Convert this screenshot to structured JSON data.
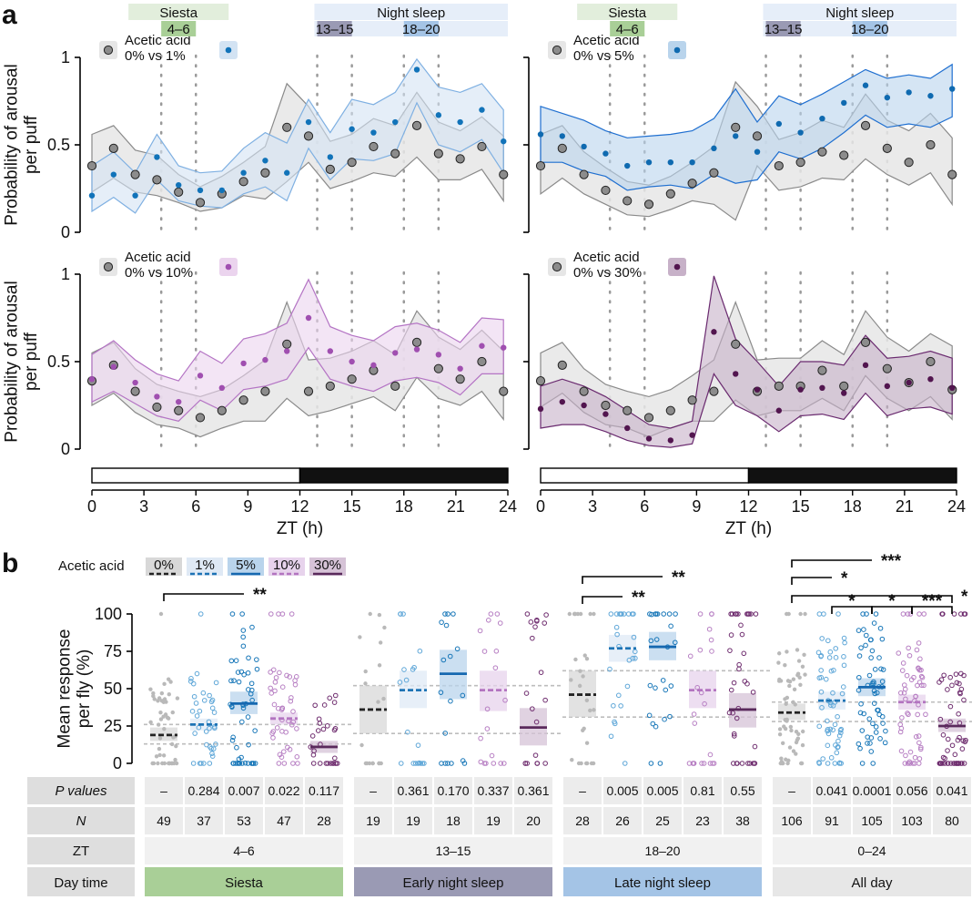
{
  "figure": {
    "panel_a": "a",
    "panel_b": "b",
    "colors": {
      "control": "#7a7a7a",
      "control_fill": "#e6e6e6",
      "ac1": "#1f78b4",
      "ac1_fill": "#d3e3f3",
      "ac5": "#1f6fb8",
      "ac5_fill": "#b9d4ec",
      "ac10": "#a760b0",
      "ac10_fill": "#ebd4ee",
      "ac30": "#5e1f5c",
      "ac30_fill": "#c7b1c8",
      "siesta": "#a9cf97",
      "early_night": "#9a9ab4",
      "late_night": "#a4c4e6",
      "all_day": "#e7e7e7"
    }
  },
  "chart_data": [
    {
      "id": "a-top-left",
      "type": "scatter",
      "title": "",
      "xlabel": "",
      "ylabel": "Probability of arousal per puff",
      "xlim": [
        0,
        24
      ],
      "ylim": [
        0,
        1
      ],
      "yticks": [
        "0",
        "0.5",
        "1"
      ],
      "header": {
        "siesta": "Siesta",
        "siesta_range": "4–6",
        "night": "Night sleep",
        "early_range": "13–15",
        "late_range": "18–20"
      },
      "legend": {
        "title": "Acetic acid",
        "entry": "0% vs 1%"
      },
      "x": [
        0,
        1.25,
        2.5,
        3.75,
        5,
        6.25,
        7.5,
        8.75,
        10,
        11.25,
        12.5,
        13.75,
        15,
        16.25,
        17.5,
        18.75,
        20,
        21.25,
        22.5,
        23.75
      ],
      "series": [
        {
          "name": "0%",
          "values": [
            0.38,
            0.48,
            0.33,
            0.3,
            0.23,
            0.17,
            0.22,
            0.29,
            0.34,
            0.6,
            0.55,
            0.36,
            0.4,
            0.49,
            0.45,
            0.61,
            0.45,
            0.42,
            0.49,
            0.33
          ],
          "lower": [
            0.23,
            0.31,
            0.23,
            0.21,
            0.17,
            0.12,
            0.14,
            0.21,
            0.19,
            0.29,
            0.4,
            0.25,
            0.29,
            0.34,
            0.32,
            0.43,
            0.3,
            0.3,
            0.36,
            0.18
          ],
          "upper": [
            0.56,
            0.61,
            0.47,
            0.44,
            0.33,
            0.26,
            0.32,
            0.4,
            0.49,
            0.85,
            0.72,
            0.52,
            0.56,
            0.65,
            0.61,
            0.8,
            0.63,
            0.58,
            0.66,
            0.55
          ]
        },
        {
          "name": "1%",
          "values": [
            0.21,
            0.33,
            0.21,
            0.43,
            0.27,
            0.24,
            0.24,
            0.34,
            0.41,
            0.34,
            0.63,
            0.43,
            0.59,
            0.57,
            0.63,
            0.93,
            0.67,
            0.63,
            0.7,
            0.52
          ],
          "lower": [
            0.12,
            0.2,
            0.11,
            0.3,
            0.18,
            0.15,
            0.14,
            0.22,
            0.26,
            0.18,
            0.48,
            0.3,
            0.42,
            0.41,
            0.45,
            0.74,
            0.5,
            0.46,
            0.53,
            0.34
          ],
          "upper": [
            0.38,
            0.46,
            0.34,
            0.56,
            0.38,
            0.34,
            0.35,
            0.48,
            0.57,
            0.51,
            0.76,
            0.57,
            0.76,
            0.73,
            0.8,
            0.99,
            0.83,
            0.8,
            0.85,
            0.7
          ]
        }
      ]
    },
    {
      "id": "a-top-right",
      "type": "scatter",
      "title": "",
      "xlabel": "",
      "ylabel": "",
      "xlim": [
        0,
        24
      ],
      "ylim": [
        0,
        1
      ],
      "yticks": [
        "",
        "",
        ""
      ],
      "header": {
        "siesta": "Siesta",
        "siesta_range": "4–6",
        "night": "Night sleep",
        "early_range": "13–15",
        "late_range": "18–20"
      },
      "legend": {
        "title": "Acetic acid",
        "entry": "0% vs 5%"
      },
      "x": [
        0,
        1.25,
        2.5,
        3.75,
        5,
        6.25,
        7.5,
        8.75,
        10,
        11.25,
        12.5,
        13.75,
        15,
        16.25,
        17.5,
        18.75,
        20,
        21.25,
        22.5,
        23.75
      ],
      "series": [
        {
          "name": "0%",
          "values": [
            0.38,
            0.48,
            0.33,
            0.24,
            0.18,
            0.16,
            0.22,
            0.28,
            0.34,
            0.6,
            0.55,
            0.38,
            0.4,
            0.46,
            0.44,
            0.61,
            0.48,
            0.4,
            0.5,
            0.33
          ],
          "lower": [
            0.22,
            0.31,
            0.22,
            0.16,
            0.1,
            0.09,
            0.13,
            0.18,
            0.16,
            0.07,
            0.38,
            0.24,
            0.26,
            0.31,
            0.3,
            0.42,
            0.33,
            0.27,
            0.34,
            0.16
          ],
          "upper": [
            0.56,
            0.61,
            0.46,
            0.37,
            0.29,
            0.27,
            0.32,
            0.4,
            0.49,
            0.86,
            0.72,
            0.53,
            0.57,
            0.64,
            0.6,
            0.79,
            0.64,
            0.58,
            0.68,
            0.54
          ]
        },
        {
          "name": "5%",
          "values": [
            0.56,
            0.55,
            0.49,
            0.45,
            0.38,
            0.4,
            0.4,
            0.4,
            0.48,
            0.55,
            0.46,
            0.62,
            0.57,
            0.65,
            0.74,
            0.84,
            0.77,
            0.8,
            0.78,
            0.82
          ],
          "lower": [
            0.4,
            0.4,
            0.35,
            0.32,
            0.24,
            0.26,
            0.27,
            0.25,
            0.33,
            0.28,
            0.3,
            0.46,
            0.42,
            0.48,
            0.57,
            0.67,
            0.6,
            0.62,
            0.6,
            0.66
          ],
          "upper": [
            0.72,
            0.68,
            0.64,
            0.58,
            0.54,
            0.55,
            0.56,
            0.58,
            0.65,
            0.82,
            0.63,
            0.78,
            0.73,
            0.79,
            0.86,
            0.93,
            0.88,
            0.9,
            0.88,
            0.96
          ]
        }
      ]
    },
    {
      "id": "a-bottom-left",
      "type": "scatter",
      "title": "",
      "xlabel": "ZT (h)",
      "ylabel": "Probability of arousal per puff",
      "xlim": [
        0,
        24
      ],
      "ylim": [
        0,
        1
      ],
      "yticks": [
        "0",
        "0.5",
        "1"
      ],
      "xticks": [
        "0",
        "3",
        "6",
        "9",
        "12",
        "15",
        "18",
        "21",
        "24"
      ],
      "legend": {
        "title": "Acetic acid",
        "entry": "0% vs 10%"
      },
      "x": [
        0,
        1.25,
        2.5,
        3.75,
        5,
        6.25,
        7.5,
        8.75,
        10,
        11.25,
        12.5,
        13.75,
        15,
        16.25,
        17.5,
        18.75,
        20,
        21.25,
        22.5,
        23.75
      ],
      "series": [
        {
          "name": "0%",
          "values": [
            0.39,
            0.48,
            0.33,
            0.24,
            0.22,
            0.18,
            0.22,
            0.28,
            0.33,
            0.6,
            0.33,
            0.36,
            0.4,
            0.45,
            0.36,
            0.61,
            0.46,
            0.4,
            0.5,
            0.33
          ],
          "lower": [
            0.25,
            0.32,
            0.21,
            0.14,
            0.12,
            0.07,
            0.12,
            0.16,
            0.16,
            0.29,
            0.19,
            0.22,
            0.26,
            0.3,
            0.22,
            0.41,
            0.29,
            0.25,
            0.33,
            0.17
          ],
          "upper": [
            0.55,
            0.61,
            0.46,
            0.37,
            0.33,
            0.3,
            0.34,
            0.42,
            0.51,
            0.84,
            0.51,
            0.52,
            0.56,
            0.62,
            0.54,
            0.79,
            0.64,
            0.57,
            0.68,
            0.56
          ]
        },
        {
          "name": "10%",
          "values": [
            0.4,
            0.47,
            0.38,
            0.3,
            0.27,
            0.42,
            0.35,
            0.49,
            0.51,
            0.56,
            0.75,
            0.56,
            0.5,
            0.48,
            0.55,
            0.57,
            0.54,
            0.46,
            0.59,
            0.58
          ],
          "lower": [
            0.27,
            0.33,
            0.26,
            0.19,
            0.16,
            0.28,
            0.22,
            0.34,
            0.36,
            0.4,
            0.58,
            0.4,
            0.36,
            0.33,
            0.39,
            0.41,
            0.38,
            0.31,
            0.43,
            0.43
          ],
          "upper": [
            0.54,
            0.62,
            0.51,
            0.43,
            0.39,
            0.56,
            0.49,
            0.63,
            0.66,
            0.72,
            0.97,
            0.7,
            0.65,
            0.62,
            0.7,
            0.72,
            0.68,
            0.61,
            0.75,
            0.74
          ]
        }
      ]
    },
    {
      "id": "a-bottom-right",
      "type": "scatter",
      "title": "",
      "xlabel": "ZT (h)",
      "ylabel": "",
      "xlim": [
        0,
        24
      ],
      "ylim": [
        0,
        1
      ],
      "yticks": [
        "",
        "",
        ""
      ],
      "xticks": [
        "0",
        "3",
        "6",
        "9",
        "12",
        "15",
        "18",
        "21",
        "24"
      ],
      "legend": {
        "title": "Acetic acid",
        "entry": "0% vs 30%"
      },
      "x": [
        0,
        1.25,
        2.5,
        3.75,
        5,
        6.25,
        7.5,
        8.75,
        10,
        11.25,
        12.5,
        13.75,
        15,
        16.25,
        17.5,
        18.75,
        20,
        21.25,
        22.5,
        23.75
      ],
      "series": [
        {
          "name": "0%",
          "values": [
            0.39,
            0.48,
            0.33,
            0.25,
            0.22,
            0.18,
            0.22,
            0.28,
            0.33,
            0.6,
            0.33,
            0.36,
            0.36,
            0.45,
            0.36,
            0.61,
            0.46,
            0.38,
            0.5,
            0.34
          ],
          "lower": [
            0.24,
            0.32,
            0.21,
            0.14,
            0.12,
            0.07,
            0.12,
            0.16,
            0.16,
            0.28,
            0.19,
            0.22,
            0.22,
            0.29,
            0.22,
            0.42,
            0.29,
            0.22,
            0.3,
            0.17
          ],
          "upper": [
            0.55,
            0.61,
            0.46,
            0.37,
            0.33,
            0.3,
            0.34,
            0.42,
            0.51,
            0.84,
            0.51,
            0.52,
            0.52,
            0.62,
            0.54,
            0.79,
            0.64,
            0.56,
            0.66,
            0.59
          ]
        },
        {
          "name": "30%",
          "values": [
            0.23,
            0.27,
            0.25,
            0.2,
            0.12,
            0.06,
            0.05,
            0.08,
            0.67,
            0.43,
            0.34,
            0.22,
            0.34,
            0.35,
            0.32,
            0.48,
            0.36,
            0.38,
            0.4,
            0.35
          ],
          "lower": [
            0.12,
            0.14,
            0.14,
            0.1,
            0.05,
            0.02,
            0.01,
            0.03,
            0.43,
            0.25,
            0.19,
            0.1,
            0.19,
            0.2,
            0.17,
            0.32,
            0.19,
            0.23,
            0.24,
            0.2
          ],
          "upper": [
            0.36,
            0.4,
            0.36,
            0.3,
            0.22,
            0.14,
            0.12,
            0.16,
            0.99,
            0.63,
            0.5,
            0.36,
            0.5,
            0.5,
            0.48,
            0.65,
            0.52,
            0.53,
            0.56,
            0.52
          ]
        }
      ]
    },
    {
      "id": "b",
      "type": "scatter",
      "title": "",
      "xlabel": "",
      "ylabel": "Mean response per fly (%)",
      "ylim": [
        0,
        100
      ],
      "yticks": [
        "0",
        "25",
        "50",
        "75",
        "100"
      ],
      "legend": {
        "title": "Acetic acid",
        "entries": [
          "0%",
          "1%",
          "5%",
          "10%",
          "30%"
        ]
      },
      "groups": [
        {
          "zt": "4–6",
          "period": "Siesta",
          "means": [
            19,
            26,
            40,
            30,
            11
          ],
          "ci_low": [
            15,
            22,
            33,
            26,
            7
          ],
          "ci_high": [
            24,
            30,
            48,
            34,
            15
          ],
          "ref_low": 13,
          "ref_high": 26,
          "p_values": [
            "–",
            "0.284",
            "0.007",
            "0.022",
            "0.117"
          ],
          "n": [
            "49",
            "37",
            "53",
            "47",
            "28"
          ],
          "sig": [
            {
              "to": 2,
              "stars": "**"
            }
          ]
        },
        {
          "zt": "13–15",
          "period": "Early night sleep",
          "means": [
            36,
            49,
            60,
            49,
            24
          ],
          "ci_low": [
            20,
            37,
            43,
            35,
            12
          ],
          "ci_high": [
            52,
            62,
            76,
            62,
            37
          ],
          "ref_low": 20,
          "ref_high": 52,
          "p_values": [
            "–",
            "0.361",
            "0.170",
            "0.337",
            "0.361"
          ],
          "n": [
            "19",
            "19",
            "18",
            "19",
            "20"
          ],
          "sig": []
        },
        {
          "zt": "18–20",
          "period": "Late night sleep",
          "means": [
            46,
            77,
            78,
            49,
            36
          ],
          "ci_low": [
            31,
            68,
            69,
            37,
            24
          ],
          "ci_high": [
            62,
            86,
            88,
            62,
            47
          ],
          "ref_low": 31,
          "ref_high": 62,
          "p_values": [
            "–",
            "0.005",
            "0.005",
            "0.81",
            "0.55"
          ],
          "n": [
            "28",
            "26",
            "25",
            "23",
            "38"
          ],
          "sig": [
            {
              "to": 1,
              "stars": "**"
            },
            {
              "to": 2,
              "stars": "**"
            }
          ]
        },
        {
          "zt": "0–24",
          "period": "All day",
          "means": [
            34,
            42,
            51,
            41,
            25
          ],
          "ci_low": [
            29,
            36,
            45,
            36,
            21
          ],
          "ci_high": [
            40,
            48,
            57,
            46,
            30
          ],
          "ref_low": 28,
          "ref_high": 41,
          "p_values": [
            "–",
            "0.041",
            "0.0001",
            "0.056",
            "0.041"
          ],
          "n": [
            "106",
            "91",
            "105",
            "103",
            "80"
          ],
          "sig": [
            {
              "to": 2,
              "stars": "***"
            },
            {
              "to": 1,
              "stars": "*"
            },
            {
              "to": 4,
              "stars": "*"
            }
          ],
          "sig_local": [
            {
              "from": 1,
              "to": 2,
              "stars": "*"
            },
            {
              "from": 2,
              "to": 3,
              "stars": "*"
            },
            {
              "from": 3,
              "to": 4,
              "stars": "***"
            }
          ]
        }
      ],
      "row_headers": {
        "p": "P values",
        "n": "N",
        "zt": "ZT",
        "day": "Day time"
      }
    }
  ]
}
